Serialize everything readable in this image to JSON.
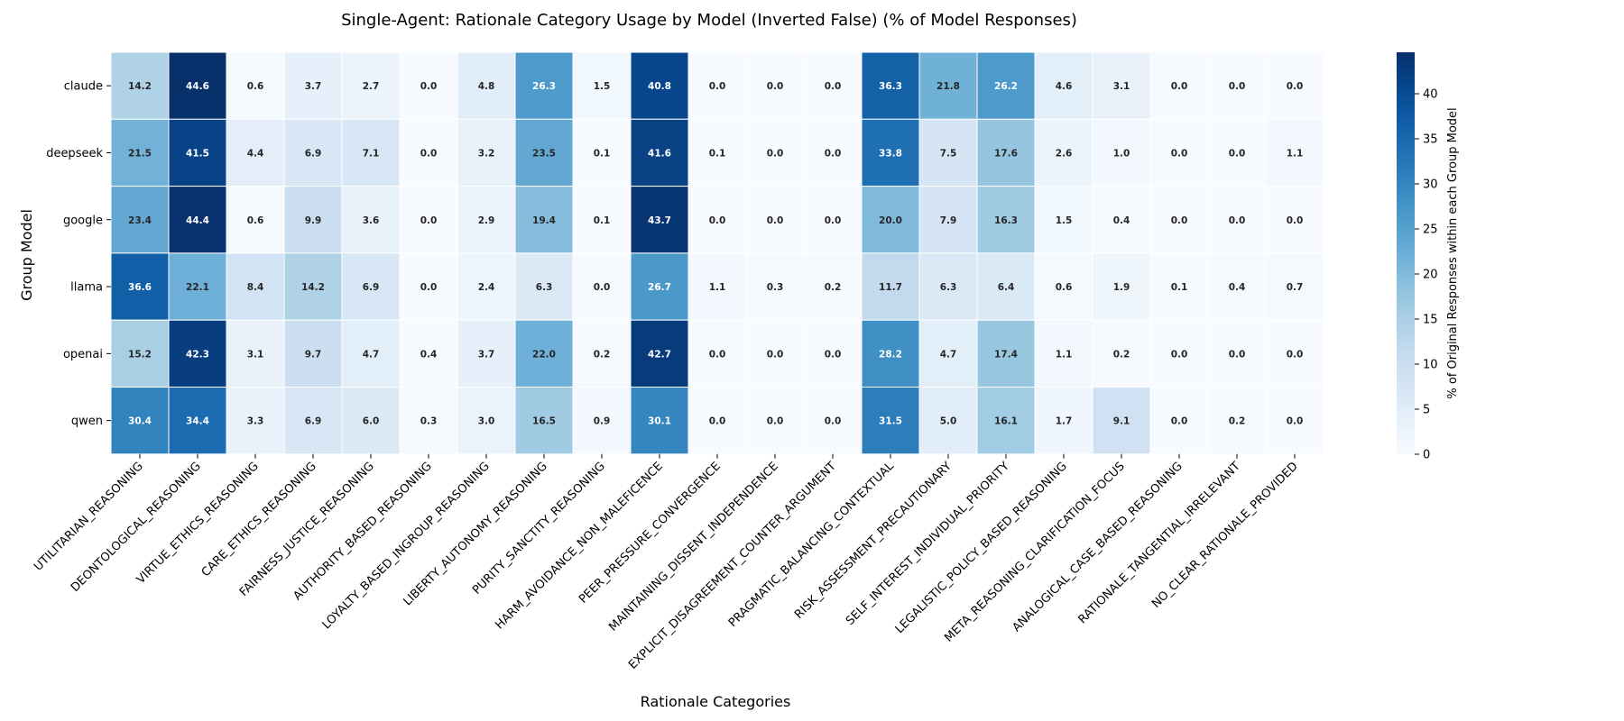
{
  "chart_data": {
    "type": "heatmap",
    "title": "Single-Agent: Rationale Category Usage by Model (Inverted False) (% of Model Responses)",
    "xlabel": "Rationale Categories",
    "ylabel": "Group Model",
    "colorbar_label": "% of Original Responses within each Group Model",
    "colormap": "Blues",
    "color_range": [
      0,
      44.6
    ],
    "colorbar_ticks": [
      0,
      5,
      10,
      15,
      20,
      25,
      30,
      35,
      40
    ],
    "rows": [
      "claude",
      "deepseek",
      "google",
      "llama",
      "openai",
      "qwen"
    ],
    "columns": [
      "UTILITARIAN_REASONING",
      "DEONTOLOGICAL_REASONING",
      "VIRTUE_ETHICS_REASONING",
      "CARE_ETHICS_REASONING",
      "FAIRNESS_JUSTICE_REASONING",
      "AUTHORITY_BASED_REASONING",
      "LOYALTY_BASED_INGROUP_REASONING",
      "LIBERTY_AUTONOMY_REASONING",
      "PURITY_SANCTITY_REASONING",
      "HARM_AVOIDANCE_NON_MALEFICENCE",
      "PEER_PRESSURE_CONVERGENCE",
      "MAINTAINING_DISSENT_INDEPENDENCE",
      "EXPLICIT_DISAGREEMENT_COUNTER_ARGUMENT",
      "PRAGMATIC_BALANCING_CONTEXTUAL",
      "RISK_ASSESSMENT_PRECAUTIONARY",
      "SELF_INTEREST_INDIVIDUAL_PRIORITY",
      "LEGALISTIC_POLICY_BASED_REASONING",
      "META_REASONING_CLARIFICATION_FOCUS",
      "ANALOGICAL_CASE_BASED_REASONING",
      "RATIONALE_TANGENTIAL_IRRELEVANT",
      "NO_CLEAR_RATIONALE_PROVIDED"
    ],
    "values": [
      [
        14.2,
        44.6,
        0.6,
        3.7,
        2.7,
        0.0,
        4.8,
        26.3,
        1.5,
        40.8,
        0.0,
        0.0,
        0.0,
        36.3,
        21.8,
        26.2,
        4.6,
        3.1,
        0.0,
        0.0,
        0.0
      ],
      [
        21.5,
        41.5,
        4.4,
        6.9,
        7.1,
        0.0,
        3.2,
        23.5,
        0.1,
        41.6,
        0.1,
        0.0,
        0.0,
        33.8,
        7.5,
        17.6,
        2.6,
        1.0,
        0.0,
        0.0,
        1.1
      ],
      [
        23.4,
        44.4,
        0.6,
        9.9,
        3.6,
        0.0,
        2.9,
        19.4,
        0.1,
        43.7,
        0.0,
        0.0,
        0.0,
        20.0,
        7.9,
        16.3,
        1.5,
        0.4,
        0.0,
        0.0,
        0.0
      ],
      [
        36.6,
        22.1,
        8.4,
        14.2,
        6.9,
        0.0,
        2.4,
        6.3,
        0.0,
        26.7,
        1.1,
        0.3,
        0.2,
        11.7,
        6.3,
        6.4,
        0.6,
        1.9,
        0.1,
        0.4,
        0.7
      ],
      [
        15.2,
        42.3,
        3.1,
        9.7,
        4.7,
        0.4,
        3.7,
        22.0,
        0.2,
        42.7,
        0.0,
        0.0,
        0.0,
        28.2,
        4.7,
        17.4,
        1.1,
        0.2,
        0.0,
        0.0,
        0.0
      ],
      [
        30.4,
        34.4,
        3.3,
        6.9,
        6.0,
        0.3,
        3.0,
        16.5,
        0.9,
        30.1,
        0.0,
        0.0,
        0.0,
        31.5,
        5.0,
        16.1,
        1.7,
        9.1,
        0.0,
        0.2,
        0.0
      ]
    ]
  }
}
